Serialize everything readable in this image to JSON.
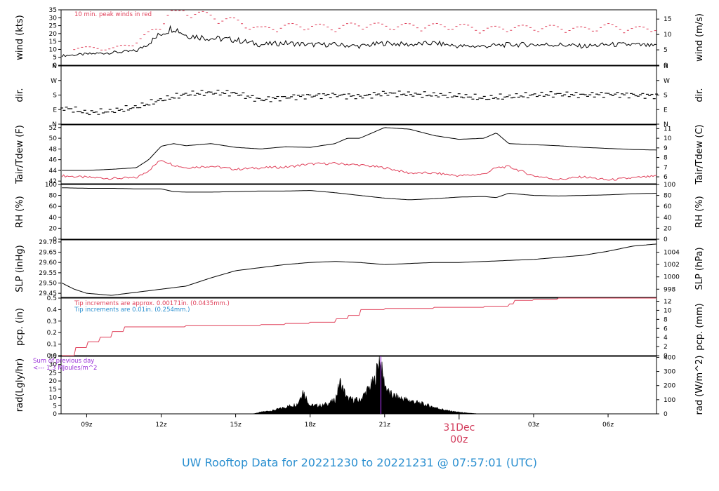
{
  "chart_data": {
    "type": "line",
    "title": "UW Rooftop Data for 20221230  to  20221231 @ 07:57:01  (UTC)",
    "x_axis": {
      "ticks": [
        "09z",
        "12z",
        "15z",
        "18z",
        "21z",
        "03z",
        "06z"
      ],
      "tick_hours": [
        9,
        12,
        15,
        18,
        21,
        27,
        30
      ],
      "midnight_label_date": "31Dec",
      "midnight_label_time": "00z",
      "midnight_hour": 24,
      "range_hours": [
        7.97,
        31.95
      ]
    },
    "colors": {
      "black": "#000000",
      "red": "#e0405a",
      "blue": "#2a8fd0",
      "purple": "#9a30d8"
    },
    "panels": [
      {
        "id": "wind",
        "ylabel_left": "wind (kts)",
        "ylabel_right": "wind (m/s)",
        "ylim": [
          0,
          35
        ],
        "left_ticks": [
          "0",
          "5",
          "10",
          "15",
          "20",
          "25",
          "30",
          "35"
        ],
        "left_tick_values": [
          0,
          5,
          10,
          15,
          20,
          25,
          30,
          35
        ],
        "right_ticks": [
          "0",
          "5",
          "10",
          "15"
        ],
        "right_tick_values_data": [
          0,
          9.72,
          19.44,
          29.16
        ],
        "annotation": "10 min. peak winds in red",
        "series": [
          {
            "name": "wind speed",
            "color": "#000000",
            "x": [
              8,
              9,
              10,
              11,
              11.5,
              12,
              12.5,
              13,
              14,
              15,
              16,
              17,
              18,
              19,
              20,
              21,
              22,
              23,
              24,
              25,
              26,
              27,
              28,
              29,
              30,
              31,
              31.95
            ],
            "y": [
              6,
              7,
              8,
              9,
              14,
              20,
              24,
              19,
              17,
              16,
              13,
              14,
              13,
              13,
              12,
              14,
              13,
              14,
              12,
              12,
              13,
              13,
              13,
              12,
              13,
              13,
              12
            ]
          },
          {
            "name": "10 min. peak winds",
            "color": "#e0405a",
            "x": [
              8.5,
              10,
              11,
              12,
              12.5,
              13,
              14,
              15,
              16,
              17,
              18,
              19,
              20,
              21,
              22,
              23,
              24,
              25,
              26,
              27,
              28,
              29,
              30,
              31,
              31.9
            ],
            "y": [
              11,
              10,
              14,
              25,
              35,
              33,
              30,
              27,
              22,
              24,
              24,
              23,
              25,
              24,
              24,
              24,
              24,
              22,
              23,
              23,
              23,
              22,
              24,
              22,
              23
            ]
          }
        ]
      },
      {
        "id": "dir",
        "ylabel_left": "dir.",
        "ylabel_right": "dir.",
        "ylim": [
          0,
          360
        ],
        "left_ticks": [
          "N",
          "E",
          "S",
          "W",
          "N"
        ],
        "left_tick_values": [
          0,
          90,
          180,
          270,
          360
        ],
        "right_ticks": [
          "N",
          "E",
          "S",
          "W",
          "N"
        ],
        "right_tick_values_data": [
          0,
          90,
          180,
          270,
          360
        ],
        "series": [
          {
            "name": "wind direction",
            "color": "#000000",
            "x": [
              8,
              8.5,
              9,
              10,
              11,
              12,
              13,
              14,
              15,
              16,
              17,
              18,
              19,
              20,
              21,
              22,
              23,
              24,
              25,
              26,
              27,
              28,
              29,
              30,
              31,
              31.95
            ],
            "y": [
              100,
              90,
              70,
              80,
              105,
              150,
              185,
              195,
              190,
              150,
              165,
              175,
              180,
              170,
              190,
              185,
              180,
              175,
              160,
              170,
              180,
              185,
              180,
              185,
              180,
              175
            ]
          }
        ]
      },
      {
        "id": "temp",
        "ylabel_left": "Tair/Tdew (F)",
        "ylabel_right": "Tair/Tdew (C)",
        "ylim": [
          41.5,
          52.5
        ],
        "left_ticks": [
          "42",
          "44",
          "46",
          "48",
          "50",
          "52"
        ],
        "left_tick_values": [
          42,
          44,
          46,
          48,
          50,
          52
        ],
        "right_ticks": [
          "6",
          "7",
          "8",
          "9",
          "10",
          "11"
        ],
        "right_tick_values_data": [
          42.8,
          44.6,
          46.4,
          48.2,
          50,
          51.8
        ],
        "series": [
          {
            "name": "Tair",
            "color": "#000000",
            "x": [
              8,
              9,
              10,
              11,
              11.5,
              12,
              12.5,
              13,
              14,
              15,
              16,
              17,
              18,
              19,
              19.5,
              20,
              20.5,
              21,
              22,
              23,
              24,
              25,
              25.5,
              26,
              27,
              28,
              29,
              30,
              31,
              31.95
            ],
            "y": [
              44,
              44,
              44.2,
              44.5,
              46,
              48.5,
              49,
              48.6,
              49,
              48.3,
              48,
              48.4,
              48.3,
              49,
              50,
              50,
              51,
              52,
              51.7,
              50.5,
              49.8,
              50,
              51,
              49,
              48.8,
              48.6,
              48.3,
              48.1,
              47.9,
              47.8
            ]
          },
          {
            "name": "Tdew",
            "color": "#e0405a",
            "x": [
              8,
              9,
              10,
              11,
              11.5,
              12,
              12.5,
              13,
              14,
              15,
              16,
              17,
              18,
              19,
              20,
              21,
              22,
              23,
              24,
              25,
              25.5,
              26,
              27,
              28,
              29,
              30,
              31,
              31.95
            ],
            "y": [
              43,
              42.7,
              42.5,
              42.6,
              44,
              46,
              45,
              44.5,
              44.8,
              44.2,
              44.5,
              44.6,
              45.2,
              45.3,
              45,
              44.5,
              43.5,
              43.5,
              43,
              43.3,
              44.5,
              44.7,
              43,
              42.3,
              42.8,
              42.2,
              42.6,
              42.9
            ]
          }
        ]
      },
      {
        "id": "rh",
        "ylabel_left": "RH (%)",
        "ylabel_right": "RH (%)",
        "ylim": [
          0,
          100
        ],
        "left_ticks": [
          "0",
          "20",
          "40",
          "60",
          "80",
          "100"
        ],
        "left_tick_values": [
          0,
          20,
          40,
          60,
          80,
          100
        ],
        "right_ticks": [
          "0",
          "20",
          "40",
          "60",
          "80",
          "100"
        ],
        "right_tick_values_data": [
          0,
          20,
          40,
          60,
          80,
          100
        ],
        "series": [
          {
            "name": "relative humidity",
            "color": "#000000",
            "x": [
              8,
              9,
              10,
              11,
              12,
              12.5,
              13,
              14,
              15,
              16,
              17,
              18,
              19,
              20,
              21,
              22,
              23,
              24,
              25,
              25.5,
              26,
              27,
              28,
              29,
              30,
              31,
              31.95
            ],
            "y": [
              94,
              93,
              93,
              92,
              92,
              87,
              86,
              86,
              87,
              88,
              88,
              89,
              85,
              80,
              75,
              72,
              74,
              77,
              78,
              76,
              84,
              80,
              79,
              80,
              81,
              83,
              84
            ]
          }
        ]
      },
      {
        "id": "slp",
        "ylabel_left": "SLP (inHg)",
        "ylabel_right": "SLP (hPa)",
        "ylim": [
          29.43,
          29.71
        ],
        "left_ticks": [
          "29.45",
          "29.50",
          "29.55",
          "29.60",
          "29.65",
          "29.70"
        ],
        "left_tick_values": [
          29.45,
          29.5,
          29.55,
          29.6,
          29.65,
          29.7
        ],
        "right_ticks": [
          "998",
          "1000",
          "1002",
          "1004"
        ],
        "right_tick_values_data": [
          29.47,
          29.53,
          29.59,
          29.65
        ],
        "series": [
          {
            "name": "sea level pressure",
            "color": "#000000",
            "x": [
              8,
              8.5,
              9,
              10,
              11,
              12,
              13,
              14,
              15,
              16,
              17,
              18,
              19,
              20,
              21,
              22,
              23,
              24,
              25,
              26,
              27,
              28,
              29,
              30,
              31,
              31.95
            ],
            "y": [
              29.5,
              29.47,
              29.45,
              29.44,
              29.455,
              29.47,
              29.485,
              29.525,
              29.56,
              29.575,
              29.59,
              29.6,
              29.605,
              29.6,
              29.59,
              29.595,
              29.6,
              29.6,
              29.605,
              29.61,
              29.615,
              29.625,
              29.635,
              29.655,
              29.68,
              29.69
            ]
          }
        ]
      },
      {
        "id": "pcp",
        "ylabel_left": "pcp. (in)",
        "ylabel_right": "pcp. (mm)",
        "ylim": [
          0,
          0.5
        ],
        "left_ticks": [
          "0.0",
          "0.1",
          "0.2",
          "0.3",
          "0.4",
          "0.5"
        ],
        "left_tick_values": [
          0,
          0.1,
          0.2,
          0.3,
          0.4,
          0.5
        ],
        "right_ticks": [
          "0",
          "2",
          "4",
          "6",
          "8",
          "10",
          "12"
        ],
        "right_tick_values_data": [
          0,
          0.0787,
          0.1575,
          0.2362,
          0.315,
          0.3937,
          0.4724
        ],
        "annotation_1": "Tip increments are approx. 0.00171in. (0.0435mm.)",
        "annotation_2": "Tip increments are 0.01in. (0.254mm.)",
        "series": [
          {
            "name": "precipitation",
            "color": "#e0405a",
            "step": true,
            "x": [
              8,
              8.5,
              9,
              9.5,
              10,
              10.5,
              11,
              12,
              13,
              14,
              15,
              16,
              17,
              18,
              19,
              19.5,
              20,
              21,
              22,
              23,
              24,
              25,
              26,
              26.2,
              27,
              28,
              29,
              30,
              31,
              31.95
            ],
            "y": [
              0,
              0.07,
              0.12,
              0.16,
              0.21,
              0.25,
              0.25,
              0.25,
              0.26,
              0.26,
              0.26,
              0.27,
              0.28,
              0.29,
              0.32,
              0.35,
              0.4,
              0.41,
              0.41,
              0.42,
              0.42,
              0.43,
              0.45,
              0.48,
              0.49,
              0.5,
              0.5,
              0.5,
              0.5,
              0.5
            ]
          }
        ]
      },
      {
        "id": "rad",
        "ylabel_left": "rad(Lgly/hr)",
        "ylabel_right": "rad (W/m^2)",
        "ylim": [
          0,
          35
        ],
        "left_ticks": [
          "0",
          "5",
          "10",
          "15",
          "20",
          "25",
          "30",
          "35"
        ],
        "left_tick_values": [
          0,
          5,
          10,
          15,
          20,
          25,
          30,
          35
        ],
        "right_ticks": [
          "0",
          "100",
          "200",
          "300",
          "400"
        ],
        "right_tick_values_data": [
          0,
          8.6,
          17.2,
          25.8,
          34.4
        ],
        "annotation_1": "Sum of previous day",
        "annotation_2": "<--- 1.3 MJoules/m^2",
        "series": [
          {
            "name": "solar radiation",
            "color": "#000000",
            "fill": true,
            "x": [
              15.7,
              16,
              16.5,
              17,
              17.5,
              17.7,
              18,
              18.5,
              19,
              19.2,
              19.5,
              20,
              20.3,
              20.6,
              20.8,
              20.9,
              21,
              21.2,
              21.5,
              22,
              22.5,
              23,
              23.5,
              24,
              24.3,
              24.8
            ],
            "y": [
              0,
              1,
              2,
              4,
              6,
              14,
              5,
              5,
              8,
              19,
              9,
              8,
              14,
              20,
              34,
              25,
              18,
              12,
              10,
              8,
              6,
              4,
              2,
              1,
              0.5,
              0
            ]
          }
        ]
      }
    ]
  }
}
